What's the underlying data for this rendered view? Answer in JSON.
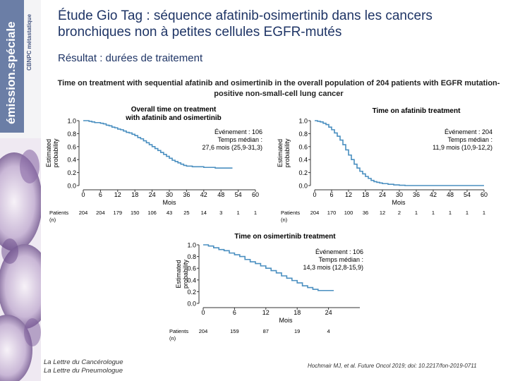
{
  "sidebar": {
    "brand": "émission.spéciale",
    "topic": "CBNPC métastatique"
  },
  "header": {
    "title": "Étude Gio Tag : séquence afatinib-osimertinib dans les cancers bronchiques non à petites cellules EGFR-mutés",
    "subtitle": "Résultat : durées de traitement"
  },
  "figure_title": "Time on treatment with sequential afatinib and osimertinib in the overall population of 204 patients with EGFR mutation-positive non-small-cell lung cancer",
  "footer": {
    "journal1": "La Lettre du Cancérologue",
    "journal2": "La Lettre du Pneumologue",
    "reference": "Hochmair MJ, et al. Future Oncol 2019; doi: 10.2217/fon-2019-0711"
  },
  "chart_data": [
    {
      "type": "line",
      "title": "Overall time on treatment with afatinib and osimertinib",
      "xlabel": "Mois",
      "ylabel": "Estimated probability",
      "xlim": [
        0,
        60
      ],
      "ylim": [
        0,
        1
      ],
      "xticks": [
        "0",
        "6",
        "12",
        "18",
        "24",
        "30",
        "36",
        "42",
        "48",
        "54",
        "60"
      ],
      "yticks": [
        "0.0",
        "0.2",
        "0.4",
        "0.6",
        "0.8",
        "1.0"
      ],
      "annotation": [
        "Événement : 106",
        "Temps médian :",
        "27,6 mois (25,9-31,3)"
      ],
      "risk_label": [
        "Patients",
        "(n)"
      ],
      "risk_values": [
        "204",
        "204",
        "179",
        "150",
        "106",
        "43",
        "25",
        "14",
        "3",
        "1",
        "1"
      ],
      "series": [
        {
          "x": [
            0,
            1,
            2,
            3,
            4,
            5,
            6,
            7,
            8,
            9,
            10,
            11,
            12,
            13,
            14,
            15,
            16,
            17,
            18,
            19,
            20,
            21,
            22,
            23,
            24,
            25,
            26,
            27,
            28,
            29,
            30,
            31,
            32,
            33,
            34,
            35,
            36,
            38,
            40,
            42,
            44,
            46,
            48,
            52
          ],
          "y": [
            1.0,
            1.0,
            0.99,
            0.98,
            0.97,
            0.97,
            0.96,
            0.95,
            0.93,
            0.92,
            0.9,
            0.89,
            0.87,
            0.86,
            0.84,
            0.82,
            0.81,
            0.79,
            0.77,
            0.74,
            0.72,
            0.69,
            0.66,
            0.63,
            0.6,
            0.57,
            0.54,
            0.51,
            0.48,
            0.45,
            0.42,
            0.39,
            0.37,
            0.35,
            0.33,
            0.31,
            0.3,
            0.29,
            0.29,
            0.28,
            0.28,
            0.27,
            0.27,
            0.27
          ]
        }
      ]
    },
    {
      "type": "line",
      "title": "Time on afatinib treatment",
      "xlabel": "Mois",
      "ylabel": "Estimated probability",
      "xlim": [
        0,
        60
      ],
      "ylim": [
        0,
        1
      ],
      "xticks": [
        "0",
        "6",
        "12",
        "18",
        "24",
        "30",
        "36",
        "42",
        "48",
        "54",
        "60"
      ],
      "yticks": [
        "0.0",
        "0.2",
        "0.4",
        "0.6",
        "0.8",
        "1.0"
      ],
      "annotation": [
        "Événement : 204",
        "Temps médian :",
        "11,9 mois (10,9-12,2)"
      ],
      "risk_label": [
        "Patients",
        "(n)"
      ],
      "risk_values": [
        "204",
        "170",
        "100",
        "36",
        "12",
        "2",
        "1",
        "1",
        "1",
        "1",
        "1"
      ],
      "series": [
        {
          "x": [
            0,
            1,
            2,
            3,
            4,
            5,
            6,
            7,
            8,
            9,
            10,
            11,
            12,
            13,
            14,
            15,
            16,
            17,
            18,
            19,
            20,
            21,
            22,
            23,
            24,
            26,
            28,
            30,
            32,
            60
          ],
          "y": [
            1.0,
            0.99,
            0.98,
            0.96,
            0.94,
            0.9,
            0.86,
            0.81,
            0.76,
            0.7,
            0.63,
            0.55,
            0.47,
            0.4,
            0.33,
            0.27,
            0.22,
            0.18,
            0.14,
            0.11,
            0.08,
            0.06,
            0.05,
            0.04,
            0.03,
            0.02,
            0.01,
            0.005,
            0.0,
            0.0
          ]
        }
      ]
    },
    {
      "type": "line",
      "title": "Time on osimertinib treatment",
      "xlabel": "Mois",
      "ylabel": "Estimated probability",
      "xlim": [
        0,
        30
      ],
      "ylim": [
        0,
        1
      ],
      "xticks": [
        "0",
        "6",
        "12",
        "18",
        "24"
      ],
      "yticks": [
        "0.0",
        "0.2",
        "0.4",
        "0.6",
        "0.8",
        "1.0"
      ],
      "annotation": [
        "Événement : 106",
        "Temps médian :",
        "14,3 mois (12,8-15,9)"
      ],
      "risk_label": [
        "Patients",
        "(n)"
      ],
      "risk_values": [
        "204",
        "159",
        "87",
        "19",
        "4"
      ],
      "series": [
        {
          "x": [
            0,
            1,
            2,
            3,
            4,
            5,
            6,
            7,
            8,
            9,
            10,
            11,
            12,
            13,
            14,
            15,
            16,
            17,
            18,
            19,
            20,
            21,
            22,
            23,
            24,
            25
          ],
          "y": [
            1.0,
            0.98,
            0.95,
            0.92,
            0.9,
            0.86,
            0.83,
            0.8,
            0.75,
            0.71,
            0.68,
            0.64,
            0.6,
            0.56,
            0.52,
            0.47,
            0.43,
            0.39,
            0.35,
            0.3,
            0.27,
            0.24,
            0.22,
            0.22,
            0.22,
            0.22
          ]
        }
      ]
    }
  ]
}
